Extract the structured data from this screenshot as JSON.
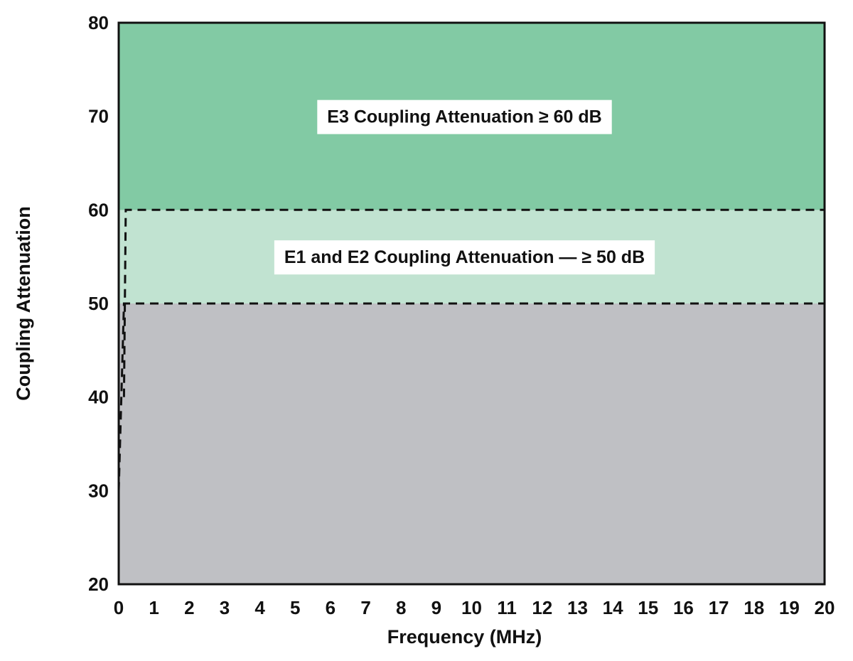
{
  "chart_data": {
    "type": "area",
    "xlabel": "Frequency (MHz)",
    "ylabel": "Coupling Attenuation",
    "xlim": [
      0,
      20
    ],
    "ylim": [
      20,
      80
    ],
    "x_ticks": [
      0,
      1,
      2,
      3,
      4,
      5,
      6,
      7,
      8,
      9,
      10,
      11,
      12,
      13,
      14,
      15,
      16,
      17,
      18,
      19,
      20
    ],
    "y_ticks": [
      20,
      30,
      40,
      50,
      60,
      70,
      80
    ],
    "grid": false,
    "regions": [
      {
        "label": "",
        "y_from": 20,
        "y_to": 80,
        "color": "#bfc0c4"
      },
      {
        "label": "E1 and E2 Coupling Attenuation — ≥ 50 dB",
        "y_from": 50,
        "y_to": 60,
        "color": "#c1e3d1"
      },
      {
        "label": "E3 Coupling Attenuation ≥ 60 dB",
        "y_from": 60,
        "y_to": 80,
        "color": "#82caa4"
      }
    ],
    "limit_lines": [
      {
        "y": 50,
        "style": "dashed",
        "points": [
          [
            0,
            30
          ],
          [
            0.15,
            50
          ],
          [
            20,
            50
          ]
        ]
      },
      {
        "y": 60,
        "style": "dashed",
        "points": [
          [
            0.15,
            40
          ],
          [
            0.2,
            60
          ],
          [
            20,
            60
          ]
        ]
      }
    ]
  }
}
